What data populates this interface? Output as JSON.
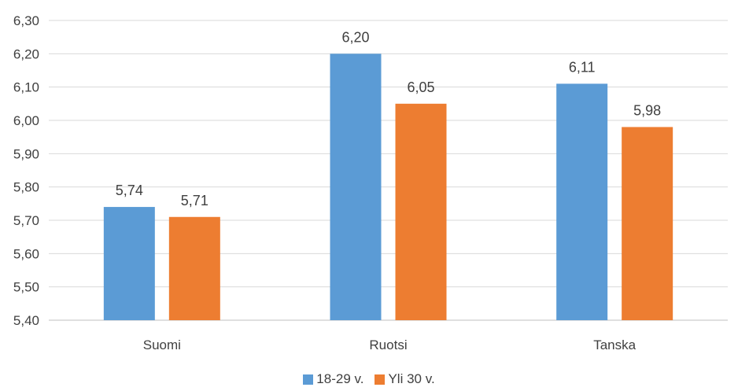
{
  "chart_data": {
    "type": "bar",
    "categories": [
      "Suomi",
      "Ruotsi",
      "Tanska"
    ],
    "series": [
      {
        "name": "18-29 v.",
        "values": [
          5.74,
          6.2,
          6.11
        ],
        "labels": [
          "5,74",
          "6,20",
          "6,11"
        ],
        "color": "#5B9BD5"
      },
      {
        "name": "Yli 30 v.",
        "values": [
          5.71,
          6.05,
          5.98
        ],
        "labels": [
          "5,71",
          "6,05",
          "5,98"
        ],
        "color": "#ED7D31"
      }
    ],
    "ylim": [
      5.4,
      6.3
    ],
    "yticks": [
      "5,40",
      "5,50",
      "5,60",
      "5,70",
      "5,80",
      "5,90",
      "6,00",
      "6,10",
      "6,20",
      "6,30"
    ],
    "grid": true,
    "legend_position": "bottom",
    "title": "",
    "xlabel": "",
    "ylabel": ""
  }
}
